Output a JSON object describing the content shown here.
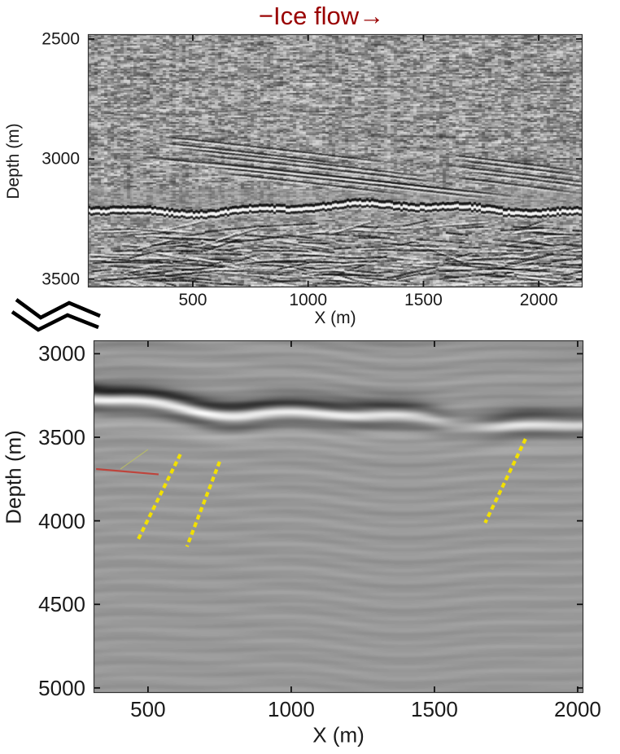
{
  "figure": {
    "title": "−Ice flow→",
    "title_color": "#990000",
    "background": "#ffffff"
  },
  "top_panel": {
    "ylabel": "Depth (m)",
    "xlabel": "X (m)"
  },
  "bottom_panel": {
    "ylabel": "Depth (m)",
    "xlabel": "X (m)"
  },
  "axis_break_icon": {
    "name": "axis-break-zigzag",
    "color": "#000000"
  },
  "chart_data": [
    {
      "type": "heatmap",
      "panel": "top",
      "title": "−Ice flow→",
      "xlabel": "X (m)",
      "ylabel": "Depth (m)",
      "xlim": [
        45,
        2190
      ],
      "ylim_depth": [
        2480,
        3535
      ],
      "xticks": [
        500,
        1000,
        1500,
        2000
      ],
      "yticks": [
        2500,
        3000,
        3500
      ],
      "colormap": "gray",
      "description": "Grainy radar/seismic depth section along ice flow: speckle noise, gently dipping englacial reflectors near 2950-3100 m, strong rough bed reflection near 3220 m, chaotic high-amplitude scattering below the bed",
      "features": [
        {
          "name": "englacial-dipping-reflectors-left",
          "x_m": [
            270,
            1450
          ],
          "depth_m": [
            2900,
            3080
          ],
          "dip": "down-flow"
        },
        {
          "name": "englacial-dipping-reflectors-right",
          "x_m": [
            1580,
            2160
          ],
          "depth_m": [
            2990,
            3100
          ],
          "dip": "down-flow"
        },
        {
          "name": "bed-reflection",
          "depth_m": [
            3200,
            3270
          ],
          "character": "strong rough continuous band"
        },
        {
          "name": "sub-bed-scattering",
          "depth_m": [
            3270,
            3535
          ],
          "character": "chaotic black-white layered clutter"
        }
      ]
    },
    {
      "type": "heatmap",
      "panel": "bottom",
      "xlabel": "X (m)",
      "ylabel": "Depth (m)",
      "xlim": [
        310,
        2020
      ],
      "ylim_depth": [
        2920,
        5030
      ],
      "xticks": [
        500,
        1000,
        1500,
        2000
      ],
      "yticks": [
        3000,
        3500,
        4000,
        4500,
        5000
      ],
      "colormap": "gray",
      "description": "Smooth migrated seismic depth section: strong wavy dark-white-dark bed reflector near 3300-3450 m weakening around x=1550 m, faint sub-horizontal ripples below",
      "features": [
        {
          "name": "bed-reflector-band",
          "depth_m": [
            3250,
            3480
          ],
          "character": "strong black/white/black wavy band, weak zone near x=1550 m, moderate again toward x=2000 m"
        }
      ],
      "annotations": [
        {
          "id": "yellow-dashed-pick-1",
          "style": "dashed",
          "color": "#f2e000",
          "x_m": [
            613,
            466
          ],
          "depth_m": [
            3602,
            4110
          ]
        },
        {
          "id": "yellow-dashed-pick-2",
          "style": "dashed",
          "color": "#f2e000",
          "x_m": [
            750,
            636
          ],
          "depth_m": [
            3646,
            4154
          ]
        },
        {
          "id": "yellow-dashed-pick-3",
          "style": "dashed",
          "color": "#f2e000",
          "x_m": [
            1818,
            1677
          ],
          "depth_m": [
            3510,
            4012
          ]
        },
        {
          "id": "red-line",
          "style": "solid",
          "color": "#c23b32",
          "x_m": [
            319,
            537
          ],
          "depth_m": [
            3690,
            3722
          ]
        },
        {
          "id": "faint-yellow-line",
          "style": "solid",
          "color": "#b9bd67",
          "x_m": [
            500,
            404
          ],
          "depth_m": [
            3573,
            3690
          ]
        }
      ]
    }
  ]
}
